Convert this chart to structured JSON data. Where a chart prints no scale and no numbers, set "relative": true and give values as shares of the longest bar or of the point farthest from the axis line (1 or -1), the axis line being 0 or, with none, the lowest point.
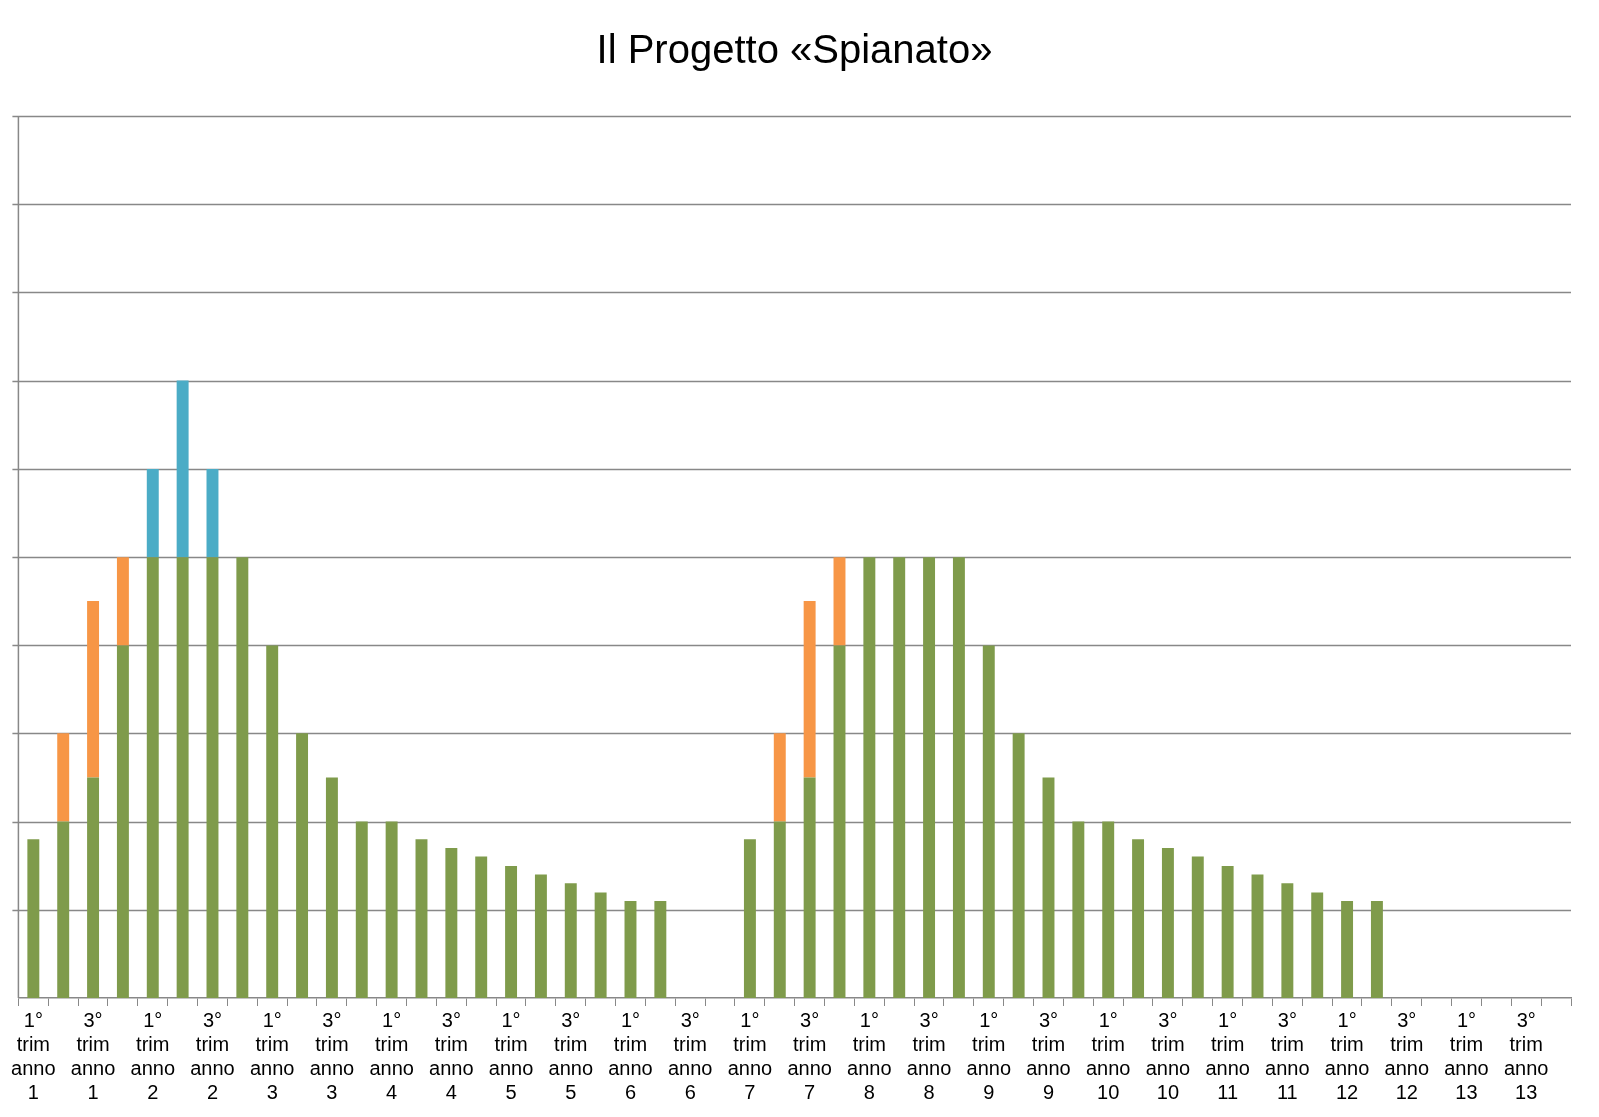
{
  "chart_data": {
    "type": "bar",
    "title": "Il Progetto «Spianato»",
    "relative": true,
    "stacked": true,
    "grid": "y",
    "legend": false,
    "categories": [
      "1° trim anno 1",
      null,
      "3° trim anno 1",
      null,
      "1° trim anno 2",
      null,
      "3° trim anno 2",
      null,
      "1° trim anno 3",
      null,
      "3° trim anno 3",
      null,
      "1° trim anno 4",
      null,
      "3° trim anno 4",
      null,
      "1° trim anno 5",
      null,
      "3° trim anno 5",
      null,
      "1° trim anno 6",
      null,
      "3° trim anno 6",
      null,
      "1° trim anno 7",
      null,
      "3° trim anno 7",
      null,
      "1° trim anno 8",
      null,
      "3° trim anno 8",
      null,
      "1° trim anno 9",
      null,
      "3° trim anno 9",
      null,
      "1° trim anno 10",
      null,
      "3° trim anno 10",
      null,
      "1° trim anno 11",
      null,
      "3° trim anno 11",
      null,
      "1° trim anno 12",
      null,
      "3° trim anno 12",
      null,
      "1° trim anno 13",
      null,
      "3° trim anno 13",
      null
    ],
    "series": [
      {
        "color": "#7f9b4b",
        "values": [
          0.257,
          0.286,
          0.357,
          0.571,
          0.714,
          0.714,
          0.714,
          0.714,
          0.571,
          0.429,
          0.357,
          0.286,
          0.286,
          0.257,
          0.243,
          0.229,
          0.214,
          0.2,
          0.186,
          0.171,
          0.157,
          0.157,
          null,
          null,
          0.257,
          0.286,
          0.357,
          0.571,
          0.714,
          0.714,
          0.714,
          0.714,
          0.571,
          0.429,
          0.357,
          0.286,
          0.286,
          0.257,
          0.243,
          0.229,
          0.214,
          0.2,
          0.186,
          0.171,
          0.157,
          0.157,
          null,
          null,
          null,
          null,
          null,
          null
        ]
      },
      {
        "color": "#f79646",
        "values": [
          null,
          0.143,
          0.286,
          0.143,
          null,
          null,
          null,
          null,
          null,
          null,
          null,
          null,
          null,
          null,
          null,
          null,
          null,
          null,
          null,
          null,
          null,
          null,
          null,
          null,
          null,
          0.143,
          0.286,
          0.143,
          null,
          null,
          null,
          null,
          null,
          null,
          null,
          null,
          null,
          null,
          null,
          null,
          null,
          null,
          null,
          null,
          null,
          null,
          null,
          null,
          null,
          null,
          null,
          null
        ]
      },
      {
        "color": "#4bacc6",
        "values": [
          null,
          null,
          null,
          null,
          0.143,
          0.286,
          0.143,
          null,
          null,
          null,
          null,
          null,
          null,
          null,
          null,
          null,
          null,
          null,
          null,
          null,
          null,
          null,
          null,
          null,
          null,
          null,
          null,
          null,
          null,
          null,
          null,
          null,
          null,
          null,
          null,
          null,
          null,
          null,
          null,
          null,
          null,
          null,
          null,
          null,
          null,
          null,
          null,
          null,
          null,
          null,
          null,
          null
        ]
      }
    ]
  }
}
